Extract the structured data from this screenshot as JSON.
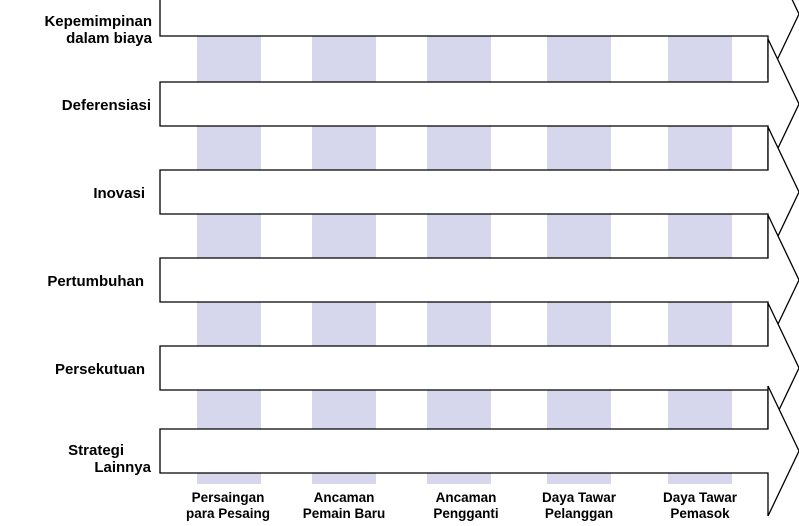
{
  "colors": {
    "column_band": "#d6d7ec",
    "arrow_fill": "#ffffff",
    "arrow_stroke": "#000000",
    "text": "#000000"
  },
  "strategies": [
    {
      "id": "cost-leadership",
      "line1": "Kepemimpinan",
      "line2": "dalam biaya"
    },
    {
      "id": "differentiation",
      "line1": "Deferensiasi",
      "line2": ""
    },
    {
      "id": "innovation",
      "line1": "Inovasi",
      "line2": ""
    },
    {
      "id": "growth",
      "line1": "Pertumbuhan",
      "line2": ""
    },
    {
      "id": "alliance",
      "line1": "Persekutuan",
      "line2": ""
    },
    {
      "id": "other",
      "line1": "Strategi",
      "line2": "Lainnya"
    }
  ],
  "forces": [
    {
      "id": "rivalry",
      "line1": "Persaingan",
      "line2": "para Pesaing"
    },
    {
      "id": "new-entrants",
      "line1": "Ancaman",
      "line2": "Pemain Baru"
    },
    {
      "id": "substitutes",
      "line1": "Ancaman",
      "line2": "Pengganti"
    },
    {
      "id": "buyer-power",
      "line1": "Daya Tawar",
      "line2": "Pelanggan"
    },
    {
      "id": "supplier-power",
      "line1": "Daya Tawar",
      "line2": "Pemasok"
    }
  ]
}
